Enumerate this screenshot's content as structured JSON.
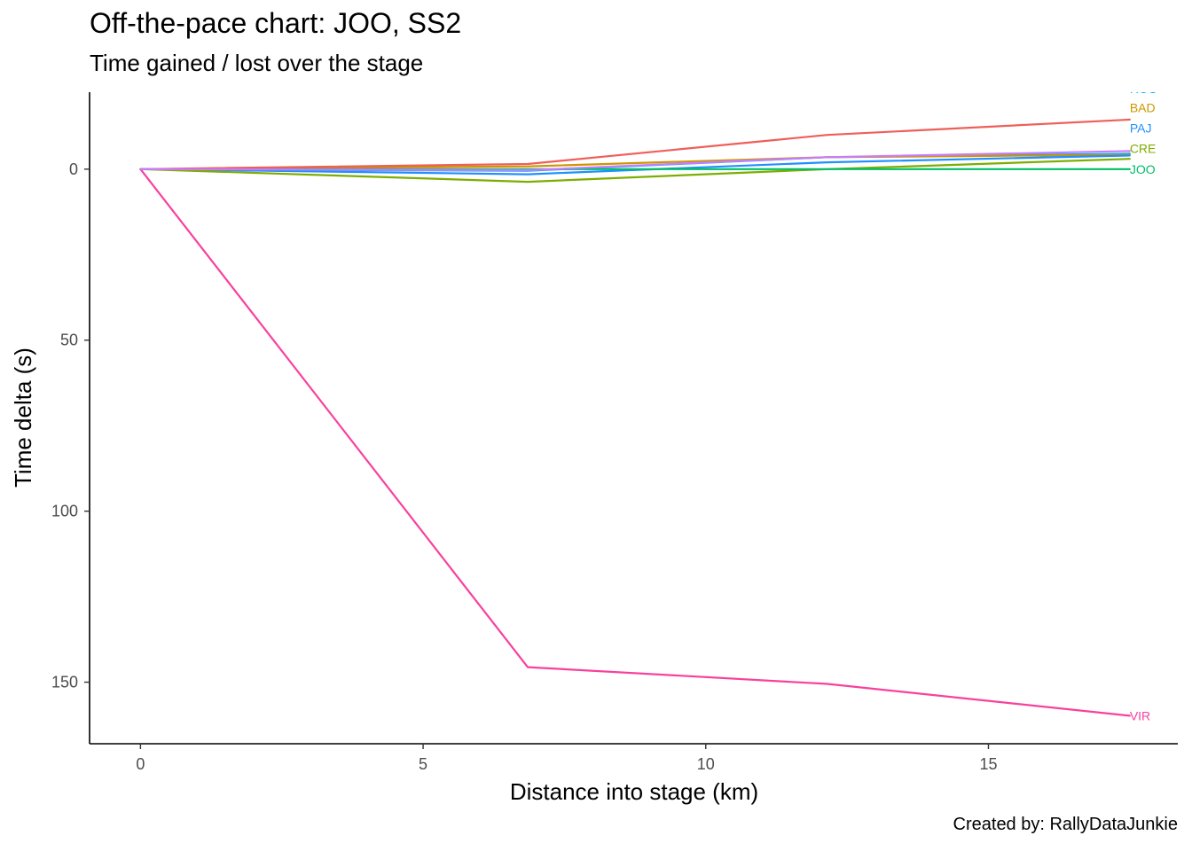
{
  "title": "Off-the-pace chart: JOO, SS2",
  "subtitle": "Time gained / lost over the stage",
  "caption": "Created by: RallyDataJunkie",
  "chart_data": {
    "type": "line",
    "title": "Off-the-pace chart: JOO, SS2",
    "subtitle": "Time gained / lost over the stage",
    "xlabel": "Distance into stage (km)",
    "ylabel": "Time delta (s)",
    "xlim": [
      -0.9,
      18.35
    ],
    "ylim": [
      -22.5,
      168
    ],
    "y_reversed": true,
    "xticks": [
      0,
      5,
      10,
      15
    ],
    "yticks": [
      0,
      50,
      100,
      150
    ],
    "grid": false,
    "legend": "direct labels at line ends",
    "series": [
      {
        "name": "ROU",
        "color": "#00a9ff",
        "x": [
          0,
          6.85,
          12.15,
          17.5
        ],
        "y": [
          0,
          0.5,
          -3.5,
          -4.5
        ],
        "label_y": -23.5
      },
      {
        "name": "BAD",
        "color": "#cd9600",
        "x": [
          0,
          6.85,
          12.15,
          17.5
        ],
        "y": [
          0,
          -0.8,
          -3.5,
          -4.2
        ],
        "label_y": -18
      },
      {
        "name": "PAJ",
        "color": "#1e90ff",
        "x": [
          0,
          6.85,
          12.15,
          17.5
        ],
        "y": [
          0,
          1.5,
          -2,
          -4
        ],
        "label_y": -12
      },
      {
        "name": "CRE",
        "color": "#7cae00",
        "x": [
          0,
          6.85,
          12.15,
          17.5
        ],
        "y": [
          0,
          3.7,
          0,
          -3
        ],
        "label_y": -6
      },
      {
        "name": "JOO",
        "color": "#00be67",
        "x": [
          0,
          6.85,
          12.15,
          17.5
        ],
        "y": [
          0,
          0,
          0,
          0
        ],
        "label_y": 0
      },
      {
        "name": "VIR",
        "color": "#f8419c",
        "x": [
          0,
          6.85,
          12.15,
          17.5
        ],
        "y": [
          0,
          145.6,
          150.5,
          159.8
        ],
        "label_y": 159.8
      },
      {
        "name": "",
        "color": "#ef5f5a",
        "x": [
          0,
          6.85,
          12.15,
          17.5
        ],
        "y": [
          0,
          -1.5,
          -10,
          -14.5
        ],
        "label_y": null
      },
      {
        "name": "",
        "color": "#c77cff",
        "x": [
          0,
          6.85,
          12.15,
          17.5
        ],
        "y": [
          0,
          0.3,
          -3.5,
          -5.3
        ],
        "label_y": null
      }
    ]
  }
}
